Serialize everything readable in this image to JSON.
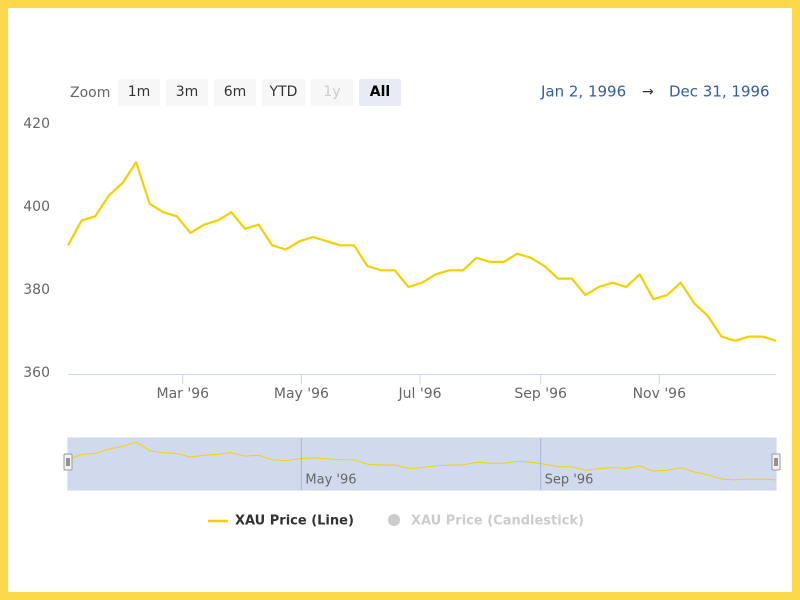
{
  "chart_data": {
    "type": "line",
    "zoom_label": "Zoom",
    "zoom_buttons": [
      "1m",
      "3m",
      "6m",
      "YTD",
      "1y",
      "All"
    ],
    "zoom_disabled": [
      "1y"
    ],
    "zoom_selected": "All",
    "date_range": {
      "from": "Jan 2, 1996",
      "arrow": "→",
      "to": "Dec 31, 1996"
    },
    "x": [
      "1996-01-02",
      "1996-01-09",
      "1996-01-16",
      "1996-01-23",
      "1996-01-30",
      "1996-02-06",
      "1996-02-13",
      "1996-02-20",
      "1996-02-27",
      "1996-03-05",
      "1996-03-12",
      "1996-03-19",
      "1996-03-26",
      "1996-04-02",
      "1996-04-09",
      "1996-04-16",
      "1996-04-23",
      "1996-04-30",
      "1996-05-07",
      "1996-05-14",
      "1996-05-21",
      "1996-05-28",
      "1996-06-04",
      "1996-06-11",
      "1996-06-18",
      "1996-06-25",
      "1996-07-02",
      "1996-07-09",
      "1996-07-16",
      "1996-07-23",
      "1996-07-30",
      "1996-08-06",
      "1996-08-13",
      "1996-08-20",
      "1996-08-27",
      "1996-09-03",
      "1996-09-10",
      "1996-09-17",
      "1996-09-24",
      "1996-10-01",
      "1996-10-08",
      "1996-10-15",
      "1996-10-22",
      "1996-10-29",
      "1996-11-05",
      "1996-11-12",
      "1996-11-19",
      "1996-11-26",
      "1996-12-03",
      "1996-12-10",
      "1996-12-17",
      "1996-12-24",
      "1996-12-31"
    ],
    "series": [
      {
        "name": "XAU Price (Line)",
        "color": "#f5d000",
        "values": [
          391,
          397,
          398,
          403,
          406,
          411,
          401,
          399,
          398,
          394,
          396,
          397,
          399,
          395,
          396,
          391,
          390,
          392,
          393,
          392,
          391,
          391,
          386,
          385,
          385,
          381,
          382,
          384,
          385,
          385,
          388,
          387,
          387,
          389,
          388,
          386,
          383,
          383,
          379,
          381,
          382,
          381,
          384,
          378,
          379,
          382,
          377,
          374,
          369,
          368,
          369,
          369,
          368
        ]
      }
    ],
    "inactive_legend": [
      "XAU Price (Candlestick)"
    ],
    "inactive_color": "#cccccc",
    "xlim": [
      "1996-01-02",
      "1996-12-31"
    ],
    "xticks": [
      {
        "value": "1996-03-01",
        "label": "Mar '96"
      },
      {
        "value": "1996-05-01",
        "label": "May '96"
      },
      {
        "value": "1996-07-01",
        "label": "Jul '96"
      },
      {
        "value": "1996-09-01",
        "label": "Sep '96"
      },
      {
        "value": "1996-11-01",
        "label": "Nov '96"
      }
    ],
    "ylim": [
      360,
      420
    ],
    "yticks": [
      360,
      380,
      400,
      420
    ],
    "grid": false,
    "navigator": {
      "xticks": [
        {
          "value": "1996-05-01",
          "label": "May '96"
        },
        {
          "value": "1996-09-01",
          "label": "Sep '96"
        }
      ]
    }
  }
}
